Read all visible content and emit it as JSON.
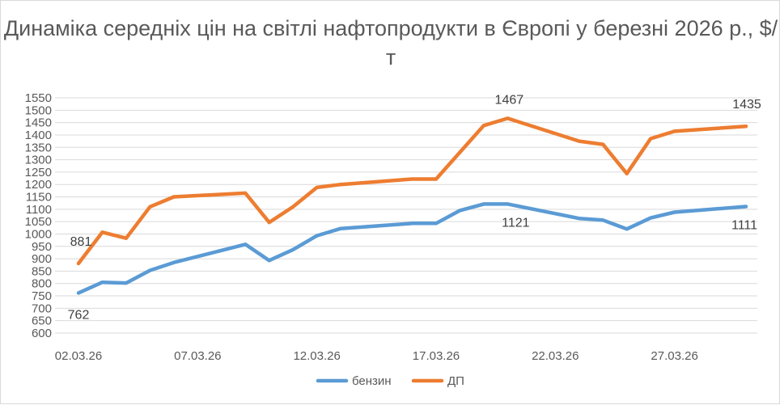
{
  "chart_data": {
    "type": "line",
    "title": "Динаміка середніх цін на світлі нафтопродукти в Європі у березні 2026 р., $/т",
    "xlabel": "",
    "ylabel": "",
    "ylim": [
      600,
      1550
    ],
    "ystep": 50,
    "x": [
      "02.03.26",
      "03.03.26",
      "04.03.26",
      "05.03.26",
      "06.03.26",
      "09.03.26",
      "10.03.26",
      "11.03.26",
      "12.03.26",
      "13.03.26",
      "16.03.26",
      "17.03.26",
      "18.03.26",
      "19.03.26",
      "20.03.26",
      "23.03.26",
      "24.03.26",
      "25.03.26",
      "26.03.26",
      "27.03.26",
      "30.03.26"
    ],
    "x_tick_labels": [
      "02.03.26",
      "07.03.26",
      "12.03.26",
      "17.03.26",
      "22.03.26",
      "27.03.26"
    ],
    "grid": true,
    "legend_position": "bottom",
    "series": [
      {
        "name": "бензин",
        "color": "#5B9BD5",
        "values": [
          762,
          805,
          802,
          853,
          885,
          958,
          893,
          937,
          993,
          1022,
          1043,
          1043,
          1095,
          1121,
          1121,
          1063,
          1056,
          1020,
          1065,
          1088,
          1111
        ],
        "point_labels": [
          {
            "index": 0,
            "text": "762"
          },
          {
            "index": 14,
            "text": "1121"
          },
          {
            "index": 20,
            "text": "1111"
          }
        ]
      },
      {
        "name": "ДП",
        "color": "#ED7D31",
        "values": [
          881,
          1007,
          983,
          1110,
          1150,
          1165,
          1047,
          1110,
          1188,
          1200,
          1222,
          1222,
          1330,
          1438,
          1467,
          1375,
          1362,
          1244,
          1385,
          1415,
          1435
        ],
        "point_labels": [
          {
            "index": 0,
            "text": "881"
          },
          {
            "index": 14,
            "text": "1467"
          },
          {
            "index": 20,
            "text": "1435"
          }
        ]
      }
    ]
  }
}
